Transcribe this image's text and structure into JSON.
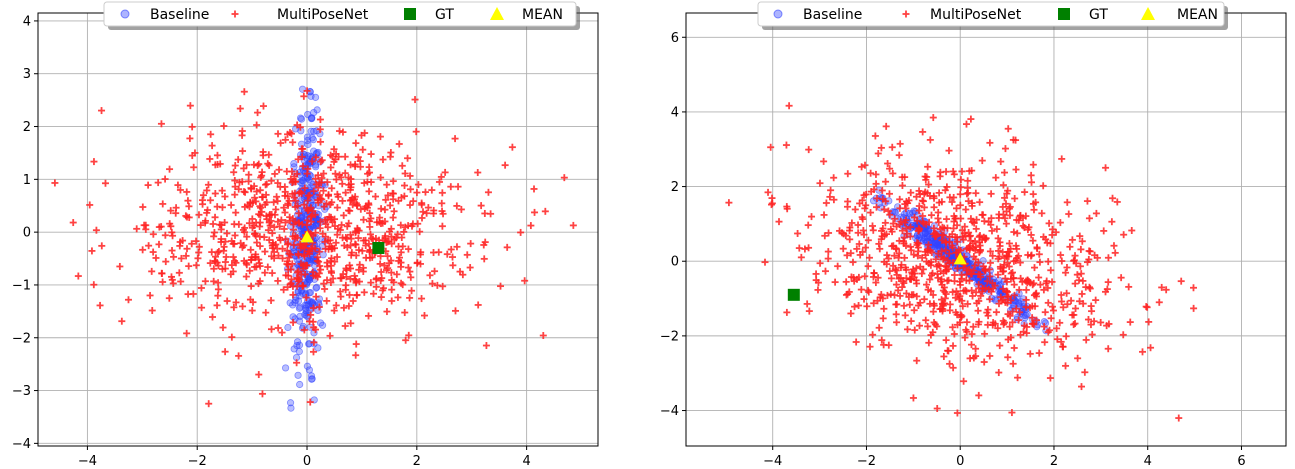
{
  "colors": {
    "baseline": "#3344ff",
    "multiposenet": "#ff2222",
    "gt": "#008000",
    "mean": "#ffff00",
    "grid": "#b0b0b0"
  },
  "chart_data": [
    {
      "type": "scatter",
      "title": "",
      "xlabel": "",
      "ylabel": "",
      "xlim": [
        -4.9,
        5.3
      ],
      "ylim": [
        -4.05,
        4.15
      ],
      "xticks": [
        -4,
        -2,
        0,
        2,
        4
      ],
      "yticks": [
        -4,
        -3,
        -2,
        -1,
        0,
        1,
        2,
        3,
        4
      ],
      "xtick_labels": [
        "−4",
        "−2",
        "0",
        "2",
        "4"
      ],
      "ytick_labels": [
        "−4",
        "−3",
        "−2",
        "−1",
        "0",
        "1",
        "2",
        "3",
        "4"
      ],
      "grid": true,
      "legend": {
        "position": "top-center",
        "entries": [
          "Baseline",
          "MultiPoseNet",
          "GT",
          "MEAN"
        ]
      },
      "series": [
        {
          "name": "Baseline",
          "marker": "circle",
          "distribution": {
            "n": 380,
            "center": [
              0,
              -0.05
            ],
            "sx": 0.15,
            "sy": 1.05,
            "rho": 0.15
          }
        },
        {
          "name": "MultiPoseNet",
          "marker": "plus",
          "distribution": {
            "n": 900,
            "center": [
              0,
              0
            ],
            "sx": 1.55,
            "sy": 0.95,
            "rho": 0.0
          }
        },
        {
          "name": "GT",
          "marker": "square",
          "points": [
            [
              1.3,
              -0.3
            ]
          ]
        },
        {
          "name": "MEAN",
          "marker": "triangle",
          "points": [
            [
              0.0,
              -0.1
            ]
          ]
        }
      ]
    },
    {
      "type": "scatter",
      "title": "",
      "xlabel": "",
      "ylabel": "",
      "xlim": [
        -5.85,
        6.95
      ],
      "ylim": [
        -4.95,
        6.65
      ],
      "xticks": [
        -4,
        -2,
        0,
        2,
        4,
        6
      ],
      "yticks": [
        -4,
        -2,
        0,
        2,
        4,
        6
      ],
      "xtick_labels": [
        "−4",
        "−2",
        "0",
        "2",
        "4",
        "6"
      ],
      "ytick_labels": [
        "−4",
        "−2",
        "0",
        "2",
        "4",
        "6"
      ],
      "grid": true,
      "legend": {
        "position": "top-center",
        "entries": [
          "Baseline",
          "MultiPoseNet",
          "GT",
          "MEAN"
        ]
      },
      "series": [
        {
          "name": "Baseline",
          "marker": "circle",
          "distribution": {
            "n": 380,
            "center": [
              0,
              0
            ],
            "sx": 0.75,
            "sy": 0.75,
            "rho": -0.97
          }
        },
        {
          "name": "MultiPoseNet",
          "marker": "plus",
          "distribution": {
            "n": 900,
            "center": [
              0,
              0
            ],
            "sx": 1.7,
            "sy": 1.3,
            "rho": -0.25
          }
        },
        {
          "name": "GT",
          "marker": "square",
          "points": [
            [
              -3.55,
              -0.9
            ]
          ]
        },
        {
          "name": "MEAN",
          "marker": "triangle",
          "points": [
            [
              0.0,
              0.05
            ]
          ]
        }
      ]
    }
  ]
}
